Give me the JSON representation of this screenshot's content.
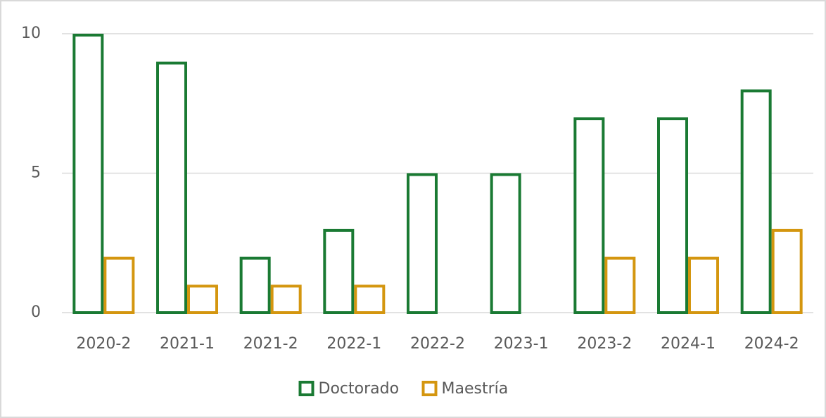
{
  "chart_data": {
    "type": "bar",
    "categories": [
      "2020-2",
      "2021-1",
      "2021-2",
      "2022-1",
      "2022-2",
      "2023-1",
      "2023-2",
      "2024-1",
      "2024-2"
    ],
    "series": [
      {
        "name": "Doctorado",
        "color": "#1a7a33",
        "values": [
          10,
          9,
          2,
          3,
          5,
          5,
          7,
          7,
          8
        ]
      },
      {
        "name": "Maestría",
        "color": "#d4960f",
        "values": [
          2,
          1,
          1,
          1,
          0,
          0,
          2,
          2,
          3
        ]
      }
    ],
    "ylim": [
      0,
      10
    ],
    "yticks": [
      0,
      5,
      10
    ],
    "grid": true,
    "legend": "bottom"
  }
}
